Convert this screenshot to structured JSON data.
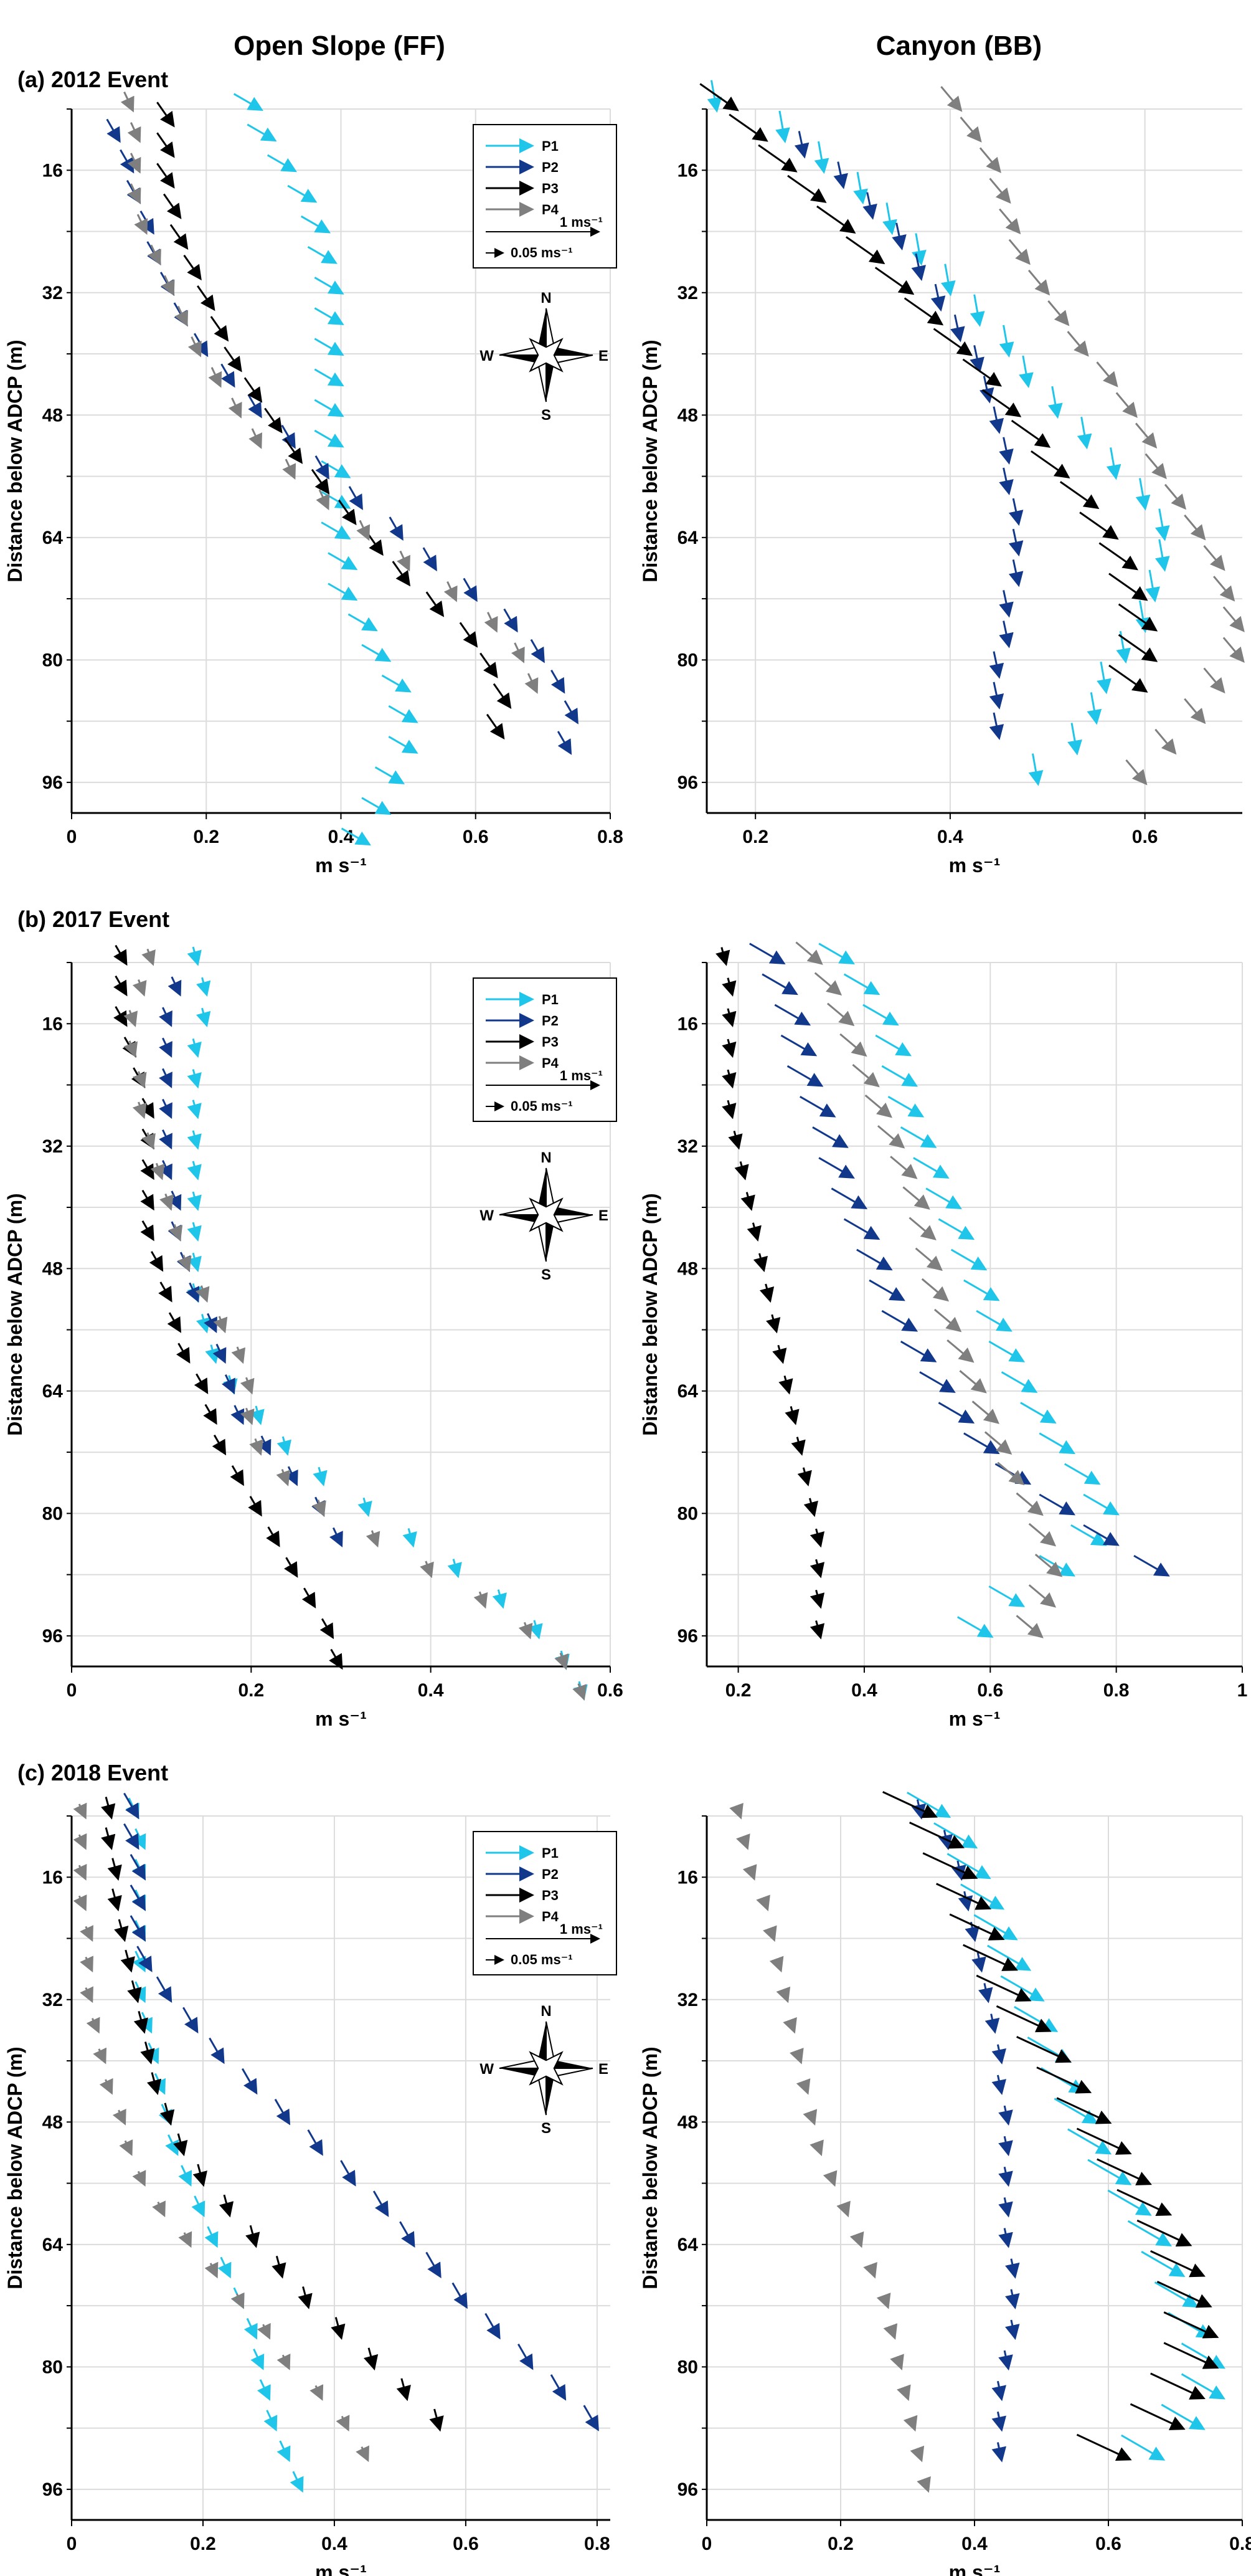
{
  "column_titles": [
    "Open Slope (FF)",
    "Canyon (BB)"
  ],
  "row_labels": [
    "(a) 2012 Event",
    "(b) 2017 Event",
    "(c) 2018 Event"
  ],
  "ylabel": "Distance below ADCP (m)",
  "xlabel": "m s⁻¹",
  "legend": {
    "series": [
      "P1",
      "P2",
      "P3",
      "P4"
    ],
    "scale_large": "1 ms⁻¹",
    "scale_small": "0.05 ms⁻¹"
  },
  "compass": {
    "n": "N",
    "s": "S",
    "e": "E",
    "w": "W"
  },
  "colors": {
    "P1": "#1fc6ea",
    "P2": "#12388c",
    "P3": "#000000",
    "P4": "#7f7f7f"
  },
  "chart_data": [
    {
      "type": "quiver-profile",
      "title": "Open Slope (FF) – 2012 Event",
      "xlim": [
        0,
        0.8
      ],
      "xticks": [
        "0",
        "0.2",
        "0.4",
        "0.6",
        "0.8"
      ],
      "ylim": [
        8,
        100
      ],
      "yticks": [
        "16",
        "32",
        "48",
        "64",
        "80",
        "96"
      ],
      "series": [
        {
          "name": "P1",
          "depth_start": 8,
          "depth_step": 4,
          "angle": 60,
          "len": 0.045,
          "speeds": [
            0.28,
            0.3,
            0.33,
            0.36,
            0.38,
            0.39,
            0.4,
            0.4,
            0.4,
            0.4,
            0.4,
            0.4,
            0.41,
            0.41,
            0.41,
            0.42,
            0.42,
            0.45,
            0.47,
            0.5,
            0.51,
            0.51,
            0.49,
            0.47,
            0.44
          ]
        },
        {
          "name": "P2",
          "depth_start": 12,
          "depth_step": 4,
          "angle": 30,
          "len": 0.035,
          "speeds": [
            0.07,
            0.09,
            0.1,
            0.12,
            0.13,
            0.15,
            0.17,
            0.2,
            0.24,
            0.28,
            0.33,
            0.38,
            0.43,
            0.49,
            0.54,
            0.6,
            0.66,
            0.7,
            0.73,
            0.75,
            0.74
          ]
        },
        {
          "name": "P3",
          "depth_start": 10,
          "depth_step": 4,
          "angle": 35,
          "len": 0.04,
          "speeds": [
            0.15,
            0.15,
            0.15,
            0.16,
            0.17,
            0.19,
            0.21,
            0.23,
            0.25,
            0.28,
            0.31,
            0.34,
            0.38,
            0.42,
            0.46,
            0.5,
            0.55,
            0.6,
            0.63,
            0.65,
            0.64
          ]
        },
        {
          "name": "P4",
          "depth_start": 8,
          "depth_step": 4,
          "angle": 25,
          "len": 0.028,
          "speeds": [
            0.09,
            0.1,
            0.1,
            0.1,
            0.11,
            0.13,
            0.15,
            0.17,
            0.19,
            0.22,
            0.25,
            0.28,
            0.33,
            0.38,
            0.44,
            0.5,
            0.57,
            0.63,
            0.67,
            0.69
          ]
        }
      ]
    },
    {
      "type": "quiver-profile",
      "title": "Canyon (BB) – 2012 Event",
      "xlim": [
        0.15,
        0.7
      ],
      "xticks": [
        "0.2",
        "0.4",
        "0.6"
      ],
      "ylim": [
        8,
        100
      ],
      "yticks": [
        "16",
        "32",
        "48",
        "64",
        "80",
        "96"
      ],
      "series": [
        {
          "name": "P1",
          "depth_start": 8,
          "depth_step": 4,
          "angle": 10,
          "len": 0.03,
          "speeds": [
            0.16,
            0.23,
            0.27,
            0.31,
            0.34,
            0.37,
            0.4,
            0.43,
            0.46,
            0.48,
            0.51,
            0.54,
            0.57,
            0.6,
            0.62,
            0.62,
            0.61,
            0.6,
            0.58,
            0.56,
            0.55,
            0.53,
            0.49
          ]
        },
        {
          "name": "P2",
          "depth_start": 14,
          "depth_step": 4,
          "angle": 12,
          "len": 0.025,
          "speeds": [
            0.25,
            0.29,
            0.32,
            0.35,
            0.37,
            0.39,
            0.41,
            0.43,
            0.44,
            0.45,
            0.46,
            0.46,
            0.47,
            0.47,
            0.47,
            0.46,
            0.46,
            0.45,
            0.45,
            0.45
          ]
        },
        {
          "name": "P3",
          "depth_start": 8,
          "depth_step": 4,
          "angle": 55,
          "len": 0.045,
          "speeds": [
            0.18,
            0.21,
            0.24,
            0.27,
            0.3,
            0.33,
            0.36,
            0.39,
            0.42,
            0.45,
            0.47,
            0.5,
            0.52,
            0.55,
            0.57,
            0.59,
            0.6,
            0.61,
            0.61,
            0.6
          ]
        },
        {
          "name": "P4",
          "depth_start": 8,
          "depth_step": 4,
          "angle": 40,
          "len": 0.03,
          "speeds": [
            0.41,
            0.43,
            0.45,
            0.46,
            0.47,
            0.48,
            0.5,
            0.52,
            0.54,
            0.57,
            0.59,
            0.61,
            0.62,
            0.64,
            0.66,
            0.68,
            0.69,
            0.7,
            0.7,
            0.68,
            0.66,
            0.63,
            0.6
          ]
        }
      ]
    },
    {
      "type": "quiver-profile",
      "title": "Open Slope (FF) – 2017 Event",
      "xlim": [
        0,
        0.6
      ],
      "xticks": [
        "0",
        "0.2",
        "0.4",
        "0.6"
      ],
      "ylim": [
        8,
        100
      ],
      "yticks": [
        "16",
        "32",
        "48",
        "64",
        "80",
        "96"
      ],
      "series": [
        {
          "name": "P1",
          "depth_start": 8,
          "depth_step": 4,
          "angle": 15,
          "len": 0.018,
          "speeds": [
            0.14,
            0.15,
            0.15,
            0.14,
            0.14,
            0.14,
            0.14,
            0.14,
            0.14,
            0.14,
            0.14,
            0.14,
            0.15,
            0.16,
            0.18,
            0.21,
            0.24,
            0.28,
            0.33,
            0.38,
            0.43,
            0.48,
            0.52,
            0.55,
            0.57
          ]
        },
        {
          "name": "P2",
          "depth_start": 12,
          "depth_step": 4,
          "angle": 25,
          "len": 0.02,
          "speeds": [
            0.12,
            0.11,
            0.11,
            0.11,
            0.11,
            0.11,
            0.11,
            0.12,
            0.12,
            0.13,
            0.14,
            0.16,
            0.17,
            0.18,
            0.19,
            0.22,
            0.25,
            0.28,
            0.3
          ]
        },
        {
          "name": "P3",
          "depth_start": 8,
          "depth_step": 4,
          "angle": 30,
          "len": 0.022,
          "speeds": [
            0.06,
            0.06,
            0.06,
            0.07,
            0.08,
            0.09,
            0.09,
            0.09,
            0.09,
            0.09,
            0.1,
            0.11,
            0.12,
            0.13,
            0.15,
            0.16,
            0.17,
            0.19,
            0.21,
            0.23,
            0.25,
            0.27,
            0.29,
            0.3
          ]
        },
        {
          "name": "P4",
          "depth_start": 8,
          "depth_step": 4,
          "angle": 20,
          "len": 0.016,
          "speeds": [
            0.09,
            0.08,
            0.07,
            0.07,
            0.08,
            0.08,
            0.09,
            0.1,
            0.11,
            0.12,
            0.13,
            0.15,
            0.17,
            0.19,
            0.2,
            0.2,
            0.21,
            0.24,
            0.28,
            0.34,
            0.4,
            0.46,
            0.51,
            0.55,
            0.57
          ]
        }
      ]
    },
    {
      "type": "quiver-profile",
      "title": "Canyon (BB) – 2017 Event",
      "xlim": [
        0.15,
        1.0
      ],
      "xticks": [
        "0.2",
        "0.4",
        "0.6",
        "0.8",
        "1"
      ],
      "ylim": [
        8,
        100
      ],
      "yticks": [
        "16",
        "32",
        "48",
        "64",
        "80",
        "96"
      ],
      "series": [
        {
          "name": "P1",
          "depth_start": 8,
          "depth_step": 4,
          "angle": 60,
          "len": 0.06,
          "speeds": [
            0.38,
            0.42,
            0.45,
            0.47,
            0.48,
            0.49,
            0.51,
            0.53,
            0.55,
            0.57,
            0.59,
            0.61,
            0.63,
            0.65,
            0.67,
            0.7,
            0.73,
            0.77,
            0.8,
            0.78,
            0.73,
            0.65,
            0.6
          ]
        },
        {
          "name": "P2",
          "depth_start": 8,
          "depth_step": 4,
          "angle": 60,
          "len": 0.06,
          "speeds": [
            0.27,
            0.29,
            0.31,
            0.32,
            0.33,
            0.35,
            0.37,
            0.38,
            0.4,
            0.42,
            0.44,
            0.46,
            0.48,
            0.51,
            0.54,
            0.57,
            0.61,
            0.66,
            0.73,
            0.8,
            0.88
          ]
        },
        {
          "name": "P3",
          "depth_start": 8,
          "depth_step": 4,
          "angle": 15,
          "len": 0.025,
          "speeds": [
            0.18,
            0.19,
            0.19,
            0.19,
            0.19,
            0.19,
            0.2,
            0.21,
            0.22,
            0.23,
            0.24,
            0.25,
            0.26,
            0.27,
            0.28,
            0.29,
            0.3,
            0.31,
            0.32,
            0.33,
            0.33,
            0.33,
            0.33
          ]
        },
        {
          "name": "P4",
          "depth_start": 8,
          "depth_step": 4,
          "angle": 50,
          "len": 0.05,
          "speeds": [
            0.33,
            0.36,
            0.38,
            0.4,
            0.42,
            0.44,
            0.46,
            0.48,
            0.5,
            0.51,
            0.52,
            0.53,
            0.55,
            0.57,
            0.59,
            0.61,
            0.63,
            0.65,
            0.68,
            0.7,
            0.71,
            0.7,
            0.68
          ]
        }
      ]
    },
    {
      "type": "quiver-profile",
      "title": "Open Slope (FF) – 2018 Event",
      "xlim": [
        0,
        0.82
      ],
      "xticks": [
        "0",
        "0.2",
        "0.4",
        "0.6",
        "0.8"
      ],
      "ylim": [
        8,
        100
      ],
      "yticks": [
        "16",
        "32",
        "48",
        "64",
        "80",
        "96"
      ],
      "series": [
        {
          "name": "P1",
          "depth_start": 8,
          "depth_step": 4,
          "angle": 25,
          "len": 0.03,
          "speeds": [
            0.1,
            0.11,
            0.11,
            0.11,
            0.11,
            0.11,
            0.11,
            0.12,
            0.13,
            0.14,
            0.15,
            0.16,
            0.18,
            0.2,
            0.22,
            0.24,
            0.26,
            0.28,
            0.29,
            0.3,
            0.31,
            0.33,
            0.35
          ]
        },
        {
          "name": "P2",
          "depth_start": 8,
          "depth_step": 4,
          "angle": 30,
          "len": 0.04,
          "speeds": [
            0.1,
            0.1,
            0.11,
            0.11,
            0.11,
            0.12,
            0.15,
            0.19,
            0.23,
            0.28,
            0.33,
            0.38,
            0.43,
            0.48,
            0.52,
            0.56,
            0.6,
            0.65,
            0.7,
            0.75,
            0.8
          ]
        },
        {
          "name": "P3",
          "depth_start": 8,
          "depth_step": 4,
          "angle": 15,
          "len": 0.03,
          "speeds": [
            0.06,
            0.06,
            0.07,
            0.07,
            0.08,
            0.09,
            0.1,
            0.11,
            0.12,
            0.13,
            0.15,
            0.17,
            0.2,
            0.24,
            0.28,
            0.32,
            0.36,
            0.41,
            0.46,
            0.51,
            0.56
          ]
        },
        {
          "name": "P4",
          "depth_start": 8,
          "depth_step": 4,
          "angle": 25,
          "len": 0.02,
          "speeds": [
            0.02,
            0.02,
            0.02,
            0.02,
            0.03,
            0.03,
            0.03,
            0.04,
            0.05,
            0.06,
            0.08,
            0.09,
            0.11,
            0.14,
            0.18,
            0.22,
            0.26,
            0.3,
            0.33,
            0.38,
            0.42,
            0.45
          ]
        }
      ]
    },
    {
      "type": "quiver-profile",
      "title": "Canyon (BB) – 2018 Event",
      "xlim": [
        0,
        0.8
      ],
      "xticks": [
        "0",
        "0.2",
        "0.4",
        "0.6",
        "0.8"
      ],
      "ylim": [
        8,
        100
      ],
      "yticks": [
        "16",
        "32",
        "48",
        "64",
        "80",
        "96"
      ],
      "series": [
        {
          "name": "P1",
          "depth_start": 8,
          "depth_step": 4,
          "angle": 60,
          "len": 0.07,
          "speeds": [
            0.36,
            0.4,
            0.42,
            0.44,
            0.46,
            0.48,
            0.5,
            0.52,
            0.54,
            0.56,
            0.58,
            0.6,
            0.63,
            0.66,
            0.69,
            0.71,
            0.73,
            0.75,
            0.77,
            0.77,
            0.74,
            0.68
          ]
        },
        {
          "name": "P2",
          "depth_start": 8,
          "depth_step": 4,
          "angle": 12,
          "len": 0.025,
          "speeds": [
            0.32,
            0.36,
            0.38,
            0.39,
            0.4,
            0.41,
            0.42,
            0.43,
            0.44,
            0.44,
            0.45,
            0.45,
            0.45,
            0.45,
            0.45,
            0.46,
            0.46,
            0.46,
            0.45,
            0.44,
            0.44,
            0.44
          ]
        },
        {
          "name": "P3",
          "depth_start": 8,
          "depth_step": 4,
          "angle": 65,
          "len": 0.085,
          "speeds": [
            0.34,
            0.38,
            0.4,
            0.42,
            0.44,
            0.46,
            0.48,
            0.51,
            0.54,
            0.57,
            0.6,
            0.63,
            0.66,
            0.69,
            0.72,
            0.74,
            0.75,
            0.76,
            0.76,
            0.74,
            0.71,
            0.63
          ]
        },
        {
          "name": "P4",
          "depth_start": 8,
          "depth_step": 4,
          "angle": 20,
          "len": 0.015,
          "speeds": [
            0.05,
            0.06,
            0.07,
            0.09,
            0.1,
            0.11,
            0.12,
            0.13,
            0.14,
            0.15,
            0.16,
            0.17,
            0.19,
            0.21,
            0.23,
            0.25,
            0.27,
            0.28,
            0.29,
            0.3,
            0.31,
            0.32,
            0.33
          ]
        }
      ]
    }
  ]
}
